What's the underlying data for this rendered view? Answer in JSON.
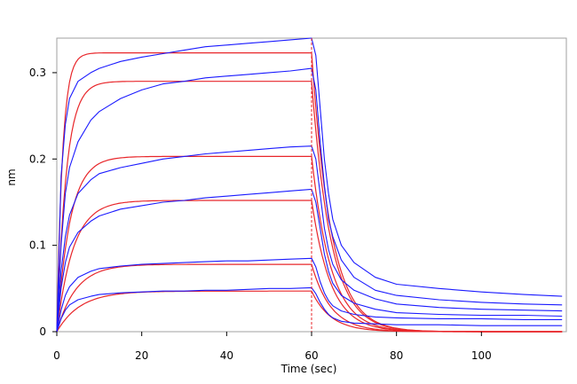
{
  "chart_data": {
    "type": "line",
    "title": "",
    "xlabel": "Time (sec)",
    "ylabel": "nm",
    "xlim": [
      0,
      120
    ],
    "ylim": [
      0,
      0.34
    ],
    "xticks": [
      0,
      20,
      40,
      60,
      80,
      100
    ],
    "xtick_labels": [
      "0",
      "20",
      "40",
      "60",
      "80",
      "100"
    ],
    "yticks": [
      0,
      0.1,
      0.2,
      0.3
    ],
    "ytick_labels": [
      "0",
      "0.1",
      "0.2",
      "0.3"
    ],
    "grid": false,
    "legend": "none",
    "association_end_x": 60,
    "measured_color": "#1a1aff",
    "fit_color": "#e8262a",
    "marker_color": "#e8262a",
    "measured_series": [
      {
        "x": [
          0,
          1,
          2,
          3,
          5,
          8,
          10,
          15,
          20,
          25,
          30,
          35,
          40,
          45,
          50,
          55,
          60,
          61,
          62,
          63,
          64,
          65,
          67,
          70,
          75,
          80,
          90,
          100,
          110,
          119
        ],
        "y": [
          0,
          0.18,
          0.24,
          0.27,
          0.29,
          0.3,
          0.305,
          0.313,
          0.318,
          0.322,
          0.326,
          0.33,
          0.332,
          0.334,
          0.336,
          0.338,
          0.34,
          0.32,
          0.26,
          0.2,
          0.16,
          0.13,
          0.1,
          0.08,
          0.063,
          0.055,
          0.05,
          0.046,
          0.043,
          0.041
        ]
      },
      {
        "x": [
          0,
          1,
          2,
          3,
          5,
          8,
          10,
          15,
          20,
          25,
          30,
          35,
          40,
          45,
          50,
          55,
          60,
          61,
          62,
          63,
          64,
          65,
          67,
          70,
          75,
          80,
          90,
          100,
          110,
          119
        ],
        "y": [
          0,
          0.1,
          0.16,
          0.19,
          0.22,
          0.245,
          0.255,
          0.27,
          0.28,
          0.287,
          0.29,
          0.294,
          0.296,
          0.298,
          0.3,
          0.302,
          0.305,
          0.28,
          0.22,
          0.17,
          0.13,
          0.11,
          0.083,
          0.063,
          0.048,
          0.042,
          0.037,
          0.034,
          0.032,
          0.031
        ]
      },
      {
        "x": [
          0,
          1,
          2,
          3,
          5,
          8,
          10,
          15,
          20,
          25,
          30,
          35,
          40,
          45,
          50,
          55,
          60,
          61,
          62,
          63,
          64,
          65,
          67,
          70,
          75,
          80,
          90,
          100,
          110,
          119
        ],
        "y": [
          0,
          0.07,
          0.11,
          0.135,
          0.16,
          0.176,
          0.183,
          0.19,
          0.195,
          0.2,
          0.203,
          0.206,
          0.208,
          0.21,
          0.212,
          0.214,
          0.215,
          0.2,
          0.16,
          0.12,
          0.095,
          0.078,
          0.06,
          0.048,
          0.038,
          0.032,
          0.028,
          0.026,
          0.025,
          0.024
        ]
      },
      {
        "x": [
          0,
          1,
          2,
          3,
          5,
          8,
          10,
          15,
          20,
          25,
          30,
          35,
          40,
          45,
          50,
          55,
          60,
          61,
          62,
          63,
          64,
          65,
          67,
          70,
          75,
          80,
          90,
          100,
          110,
          119
        ],
        "y": [
          0,
          0.05,
          0.08,
          0.098,
          0.115,
          0.128,
          0.134,
          0.142,
          0.146,
          0.15,
          0.152,
          0.155,
          0.157,
          0.159,
          0.161,
          0.163,
          0.165,
          0.15,
          0.12,
          0.09,
          0.07,
          0.056,
          0.042,
          0.033,
          0.026,
          0.022,
          0.02,
          0.019,
          0.019,
          0.018
        ]
      },
      {
        "x": [
          0,
          1,
          2,
          3,
          5,
          8,
          10,
          15,
          20,
          25,
          30,
          35,
          40,
          45,
          50,
          55,
          60,
          61,
          62,
          63,
          64,
          65,
          67,
          70,
          75,
          80,
          90,
          100,
          110,
          119
        ],
        "y": [
          0,
          0.025,
          0.042,
          0.052,
          0.063,
          0.07,
          0.073,
          0.076,
          0.078,
          0.079,
          0.08,
          0.081,
          0.082,
          0.082,
          0.083,
          0.084,
          0.085,
          0.075,
          0.058,
          0.045,
          0.036,
          0.03,
          0.024,
          0.02,
          0.017,
          0.016,
          0.015,
          0.015,
          0.014,
          0.014
        ]
      },
      {
        "x": [
          0,
          1,
          2,
          3,
          5,
          8,
          10,
          15,
          20,
          25,
          30,
          35,
          40,
          45,
          50,
          55,
          60,
          61,
          62,
          63,
          64,
          65,
          67,
          70,
          75,
          80,
          90,
          100,
          110,
          119
        ],
        "y": [
          0,
          0.015,
          0.025,
          0.031,
          0.037,
          0.041,
          0.043,
          0.045,
          0.046,
          0.047,
          0.047,
          0.048,
          0.048,
          0.049,
          0.05,
          0.05,
          0.051,
          0.044,
          0.034,
          0.026,
          0.02,
          0.016,
          0.012,
          0.01,
          0.009,
          0.008,
          0.008,
          0.007,
          0.007,
          0.007
        ]
      }
    ],
    "fit_series": [
      {
        "plateau": 0.323,
        "k_assoc": 0.75,
        "k_dissoc": 0.22
      },
      {
        "plateau": 0.29,
        "k_assoc": 0.45,
        "k_dissoc": 0.22
      },
      {
        "plateau": 0.203,
        "k_assoc": 0.32,
        "k_dissoc": 0.22
      },
      {
        "plateau": 0.152,
        "k_assoc": 0.26,
        "k_dissoc": 0.22
      },
      {
        "plateau": 0.078,
        "k_assoc": 0.22,
        "k_dissoc": 0.22
      },
      {
        "plateau": 0.047,
        "k_assoc": 0.18,
        "k_dissoc": 0.22
      }
    ]
  }
}
